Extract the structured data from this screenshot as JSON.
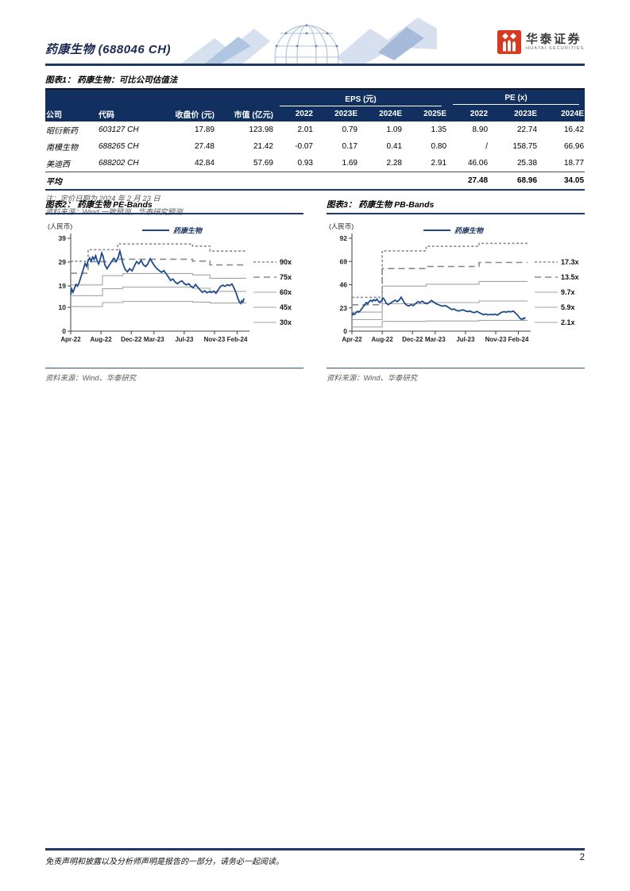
{
  "header": {
    "stock_title": "药康生物 (688046 CH)",
    "logo_cn": "华泰证券",
    "logo_en": "HUATAI SECURITIES",
    "brand_color": "#d8391f",
    "rule_color": "#1f3864"
  },
  "table": {
    "title": "图表1：  药康生物：可比公司估值法",
    "group_headers": [
      {
        "label": "EPS (元)",
        "span": 4
      },
      {
        "label": "PE (x)",
        "span": 3
      }
    ],
    "columns": [
      "公司",
      "代码",
      "收盘价 (元)",
      "市值 (亿元)",
      "2022",
      "2023E",
      "2024E",
      "2025E",
      "2022",
      "2023E",
      "2024E"
    ],
    "rows": [
      [
        "昭衍新药",
        "603127 CH",
        "17.89",
        "123.98",
        "2.01",
        "0.79",
        "1.09",
        "1.35",
        "8.90",
        "22.74",
        "16.42"
      ],
      [
        "南模生物",
        "688265 CH",
        "27.48",
        "21.42",
        "-0.07",
        "0.17",
        "0.41",
        "0.80",
        "/",
        "158.75",
        "66.96"
      ],
      [
        "美迪西",
        "688202 CH",
        "42.84",
        "57.69",
        "0.93",
        "1.69",
        "2.28",
        "2.91",
        "46.06",
        "25.38",
        "18.77"
      ]
    ],
    "avg_row": {
      "label": "平均",
      "values": [
        "27.48",
        "68.96",
        "34.05"
      ]
    },
    "note": "注：定价日期为 2024 年 2 月 23 日",
    "source": "资料来源：Wind 一致预测，华泰研究预测"
  },
  "price_points": [
    [
      0,
      15.3
    ],
    [
      0.15,
      17.6
    ],
    [
      0.3,
      16.4
    ],
    [
      0.5,
      18.0
    ],
    [
      0.7,
      19.6
    ],
    [
      0.9,
      18.9
    ],
    [
      1.1,
      20.3
    ],
    [
      1.4,
      23.2
    ],
    [
      1.7,
      26.3
    ],
    [
      1.9,
      28.4
    ],
    [
      2.1,
      27.2
    ],
    [
      2.3,
      29.6
    ],
    [
      2.5,
      30.7
    ],
    [
      2.7,
      29.4
    ],
    [
      2.9,
      31.1
    ],
    [
      3.1,
      30.1
    ],
    [
      3.3,
      31.7
    ],
    [
      3.5,
      29.6
    ],
    [
      3.7,
      28.2
    ],
    [
      3.9,
      30.3
    ],
    [
      4.1,
      32.8
    ],
    [
      4.3,
      31.2
    ],
    [
      4.5,
      27.9
    ],
    [
      4.8,
      26.2
    ],
    [
      5.1,
      27.7
    ],
    [
      5.4,
      29.2
    ],
    [
      5.7,
      30.6
    ],
    [
      6.0,
      29.2
    ],
    [
      6.3,
      31.2
    ],
    [
      6.5,
      33.6
    ],
    [
      6.7,
      31.2
    ],
    [
      6.9,
      28.3
    ],
    [
      7.2,
      25.9
    ],
    [
      7.5,
      24.9
    ],
    [
      7.8,
      26.2
    ],
    [
      8.1,
      25.3
    ],
    [
      8.4,
      27.2
    ],
    [
      8.7,
      29.2
    ],
    [
      9.0,
      28.3
    ],
    [
      9.3,
      29.7
    ],
    [
      9.6,
      27.9
    ],
    [
      9.9,
      27.1
    ],
    [
      10.2,
      28.3
    ],
    [
      10.5,
      30.4
    ],
    [
      10.8,
      28.8
    ],
    [
      11.1,
      27.3
    ],
    [
      11.4,
      26.2
    ],
    [
      11.7,
      25.4
    ],
    [
      12.0,
      24.7
    ],
    [
      12.3,
      25.4
    ],
    [
      12.6,
      24.2
    ],
    [
      12.9,
      22.8
    ],
    [
      13.2,
      21.3
    ],
    [
      13.5,
      21.9
    ],
    [
      13.8,
      20.6
    ],
    [
      14.1,
      19.9
    ],
    [
      14.4,
      20.7
    ],
    [
      14.7,
      21.1
    ],
    [
      15.0,
      20.0
    ],
    [
      15.3,
      19.4
    ],
    [
      15.6,
      19.9
    ],
    [
      15.9,
      18.8
    ],
    [
      16.2,
      18.3
    ],
    [
      16.5,
      19.6
    ],
    [
      16.8,
      18.4
    ],
    [
      17.1,
      17.3
    ],
    [
      17.4,
      16.3
    ],
    [
      17.7,
      16.9
    ],
    [
      18.0,
      16.1
    ],
    [
      18.3,
      16.6
    ],
    [
      18.6,
      16.2
    ],
    [
      18.9,
      16.8
    ],
    [
      19.2,
      15.9
    ],
    [
      19.5,
      17.4
    ],
    [
      19.8,
      18.8
    ],
    [
      20.1,
      19.3
    ],
    [
      20.4,
      18.8
    ],
    [
      20.7,
      19.5
    ],
    [
      21.0,
      19.1
    ],
    [
      21.3,
      19.8
    ],
    [
      21.5,
      18.7
    ],
    [
      21.7,
      17.2
    ],
    [
      21.9,
      15.7
    ],
    [
      22.1,
      13.7
    ],
    [
      22.3,
      12.2
    ],
    [
      22.45,
      11.6
    ],
    [
      22.6,
      12.7
    ],
    [
      22.75,
      12.2
    ],
    [
      22.9,
      13.8
    ]
  ],
  "chart_data": [
    {
      "type": "line",
      "title": "图表2：  药康生物 PE-Bands",
      "unit_label": "(人民币)",
      "legend": "药康生物",
      "source": "资料来源：Wind、华泰研究",
      "x_range": [
        0,
        23.2
      ],
      "ylim": [
        0,
        39
      ],
      "y_ticks": [
        0,
        10,
        19,
        29,
        39
      ],
      "x_ticks": [
        {
          "m": 0,
          "label": "Apr-22"
        },
        {
          "m": 4,
          "label": "Aug-22"
        },
        {
          "m": 8,
          "label": "Dec-22"
        },
        {
          "m": 11,
          "label": "Mar-23"
        },
        {
          "m": 15,
          "label": "Jul-23"
        },
        {
          "m": 19,
          "label": "Nov-23"
        },
        {
          "m": 22,
          "label": "Feb-24"
        }
      ],
      "series": [
        {
          "name": "90x",
          "band": true,
          "color": "#8a8a8a",
          "width": 1.6,
          "dash": "3 2.5",
          "points": [
            [
              0,
              29.3
            ],
            [
              2.3,
              29.3
            ],
            [
              2.3,
              34.2
            ],
            [
              6.2,
              34.2
            ],
            [
              6.2,
              36.6
            ],
            [
              16.1,
              36.6
            ],
            [
              16.1,
              35.7
            ],
            [
              18.4,
              35.7
            ],
            [
              18.4,
              33.6
            ],
            [
              23.2,
              33.6
            ]
          ]
        },
        {
          "name": "75x",
          "band": true,
          "color": "#8a8a8a",
          "width": 1.6,
          "dash": "8 5",
          "points": [
            [
              0,
              24.3
            ],
            [
              2.3,
              24.3
            ],
            [
              2.3,
              29.2
            ],
            [
              6.2,
              29.2
            ],
            [
              6.2,
              30.2
            ],
            [
              16.1,
              30.2
            ],
            [
              16.1,
              29.4
            ],
            [
              18.4,
              29.4
            ],
            [
              18.4,
              27.8
            ],
            [
              23.2,
              27.8
            ]
          ]
        },
        {
          "name": "60x",
          "band": true,
          "color": "#a3a3a3",
          "width": 1.1,
          "dash": "",
          "points": [
            [
              0,
              19.4
            ],
            [
              4.2,
              19.4
            ],
            [
              4.2,
              23.3
            ],
            [
              6.9,
              23.3
            ],
            [
              6.9,
              24.2
            ],
            [
              16.1,
              24.2
            ],
            [
              16.1,
              23.6
            ],
            [
              18.4,
              23.6
            ],
            [
              18.4,
              22.2
            ],
            [
              23.2,
              22.2
            ]
          ]
        },
        {
          "name": "45x",
          "band": true,
          "color": "#a3a3a3",
          "width": 1.1,
          "dash": "",
          "points": [
            [
              0,
              14.9
            ],
            [
              4.2,
              14.9
            ],
            [
              4.2,
              17.8
            ],
            [
              6.9,
              17.8
            ],
            [
              6.9,
              18.5
            ],
            [
              16.1,
              18.5
            ],
            [
              16.1,
              18.0
            ],
            [
              18.4,
              18.0
            ],
            [
              18.4,
              16.7
            ],
            [
              23.2,
              16.7
            ]
          ]
        },
        {
          "name": "30x",
          "band": true,
          "color": "#a3a3a3",
          "width": 1.1,
          "dash": "",
          "points": [
            [
              0,
              10.3
            ],
            [
              4.2,
              10.3
            ],
            [
              4.2,
              12.0
            ],
            [
              6.9,
              12.0
            ],
            [
              6.9,
              12.5
            ],
            [
              16.1,
              12.5
            ],
            [
              16.1,
              12.2
            ],
            [
              18.4,
              12.2
            ],
            [
              18.4,
              11.8
            ],
            [
              23.2,
              11.8
            ]
          ]
        },
        {
          "name": "药康生物",
          "band": false,
          "color": "#1f4b8e",
          "width": 1.8,
          "dash": "",
          "points_ref": "price_points"
        }
      ]
    },
    {
      "type": "line",
      "title": "图表3：  药康生物 PB-Bands",
      "unit_label": "(人民币)",
      "legend": "药康生物",
      "source": "资料来源：Wind、华泰研究",
      "x_range": [
        0,
        23.2
      ],
      "ylim": [
        0,
        92
      ],
      "y_ticks": [
        0,
        23,
        46,
        69,
        92
      ],
      "x_ticks": [
        {
          "m": 0,
          "label": "Apr-22"
        },
        {
          "m": 4,
          "label": "Aug-22"
        },
        {
          "m": 8,
          "label": "Dec-22"
        },
        {
          "m": 11,
          "label": "Mar-23"
        },
        {
          "m": 15,
          "label": "Jul-23"
        },
        {
          "m": 19,
          "label": "Nov-23"
        },
        {
          "m": 22,
          "label": "Feb-24"
        }
      ],
      "series": [
        {
          "name": "17.3x",
          "band": true,
          "color": "#8a8a8a",
          "width": 1.6,
          "dash": "3 2.5",
          "points": [
            [
              0,
              33.5
            ],
            [
              4,
              33.5
            ],
            [
              4,
              79.5
            ],
            [
              9.8,
              79.5
            ],
            [
              9.8,
              84.0
            ],
            [
              16.8,
              84.0
            ],
            [
              16.8,
              87.0
            ],
            [
              23.2,
              87.0
            ]
          ]
        },
        {
          "name": "13.5x",
          "band": true,
          "color": "#8a8a8a",
          "width": 1.6,
          "dash": "8 5",
          "points": [
            [
              0,
              26.1
            ],
            [
              4,
              26.1
            ],
            [
              4,
              62.0
            ],
            [
              9.8,
              62.0
            ],
            [
              9.8,
              64.0
            ],
            [
              16.8,
              64.0
            ],
            [
              16.8,
              68.0
            ],
            [
              23.2,
              68.0
            ]
          ]
        },
        {
          "name": "9.7x",
          "band": true,
          "color": "#a3a3a3",
          "width": 1.1,
          "dash": "",
          "points": [
            [
              0,
              18.8
            ],
            [
              4,
              18.8
            ],
            [
              4,
              44.6
            ],
            [
              9.8,
              44.6
            ],
            [
              9.8,
              46.5
            ],
            [
              16.8,
              46.5
            ],
            [
              16.8,
              49.2
            ],
            [
              23.2,
              49.2
            ]
          ]
        },
        {
          "name": "5.9x",
          "band": true,
          "color": "#a3a3a3",
          "width": 1.1,
          "dash": "",
          "points": [
            [
              0,
              11.4
            ],
            [
              4,
              11.4
            ],
            [
              4,
              27.1
            ],
            [
              9.8,
              27.1
            ],
            [
              9.8,
              28.3
            ],
            [
              16.8,
              28.3
            ],
            [
              16.8,
              29.9
            ],
            [
              23.2,
              29.9
            ]
          ]
        },
        {
          "name": "2.1x",
          "band": true,
          "color": "#a3a3a3",
          "width": 1.1,
          "dash": "",
          "points": [
            [
              0,
              4.1
            ],
            [
              4,
              4.1
            ],
            [
              4,
              9.7
            ],
            [
              9.8,
              9.7
            ],
            [
              9.8,
              10.1
            ],
            [
              16.8,
              10.1
            ],
            [
              16.8,
              10.7
            ],
            [
              23.2,
              10.7
            ]
          ]
        },
        {
          "name": "药康生物",
          "band": false,
          "color": "#1f4b8e",
          "width": 1.8,
          "dash": "",
          "points_ref": "price_points"
        }
      ]
    }
  ],
  "footer": {
    "disclaimer": "免责声明和披露以及分析师声明是报告的一部分，请务必一起阅读。",
    "page_number": "2"
  }
}
